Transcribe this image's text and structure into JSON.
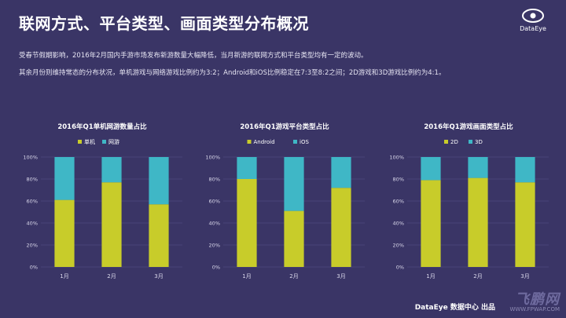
{
  "title": "联网方式、平台类型、画面类型分布概况",
  "logo": {
    "text": "DataEye",
    "icon": "eye-logo-icon"
  },
  "paragraphs": [
    "受春节假期影响，2016年2月国内手游市场发布新游数量大幅降低，当月新游的联网方式和平台类型均有一定的波动。",
    "其余月份则维持常态的分布状况，单机游戏与网络游戏比例约为3:2；Android和iOS比例稳定在7:3至8:2之间；2D游戏和3D游戏比例约为4:1。"
  ],
  "footer": "DataEye 数据中心 出品",
  "watermark": {
    "brand": "飞鹏网",
    "url": "WWW.FPWAP.COM"
  },
  "colors": {
    "series1": "#c8cc2a",
    "series2": "#3fb7c6",
    "background": "#3a3566",
    "grid": "#57528a",
    "text": "#ffffff"
  },
  "chart_data": [
    {
      "type": "bar",
      "stacked": true,
      "title": "2016年Q1单机网游数量占比",
      "categories": [
        "1月",
        "2月",
        "3月"
      ],
      "series": [
        {
          "name": "单机",
          "values": [
            61,
            77,
            57
          ]
        },
        {
          "name": "网游",
          "values": [
            39,
            23,
            43
          ]
        }
      ],
      "ylim": [
        0,
        100
      ],
      "yticks": [
        "0%",
        "20%",
        "40%",
        "60%",
        "80%",
        "100%"
      ],
      "legend": "top-center",
      "grid": true
    },
    {
      "type": "bar",
      "stacked": true,
      "title": "2016年Q1游戏平台类型占比",
      "categories": [
        "1月",
        "2月",
        "3月"
      ],
      "series": [
        {
          "name": "Android",
          "values": [
            80,
            51,
            72
          ]
        },
        {
          "name": "iOS",
          "values": [
            20,
            49,
            28
          ]
        }
      ],
      "ylim": [
        0,
        100
      ],
      "yticks": [
        "0%",
        "20%",
        "40%",
        "60%",
        "80%",
        "100%"
      ],
      "legend": "top-center",
      "grid": true
    },
    {
      "type": "bar",
      "stacked": true,
      "title": "2016年Q1游戏画面类型占比",
      "categories": [
        "1月",
        "2月",
        "3月"
      ],
      "series": [
        {
          "name": "2D",
          "values": [
            79,
            81,
            77
          ]
        },
        {
          "name": "3D",
          "values": [
            21,
            19,
            23
          ]
        }
      ],
      "ylim": [
        0,
        100
      ],
      "yticks": [
        "0%",
        "20%",
        "40%",
        "60%",
        "80%",
        "100%"
      ],
      "legend": "top-center",
      "grid": true
    }
  ]
}
